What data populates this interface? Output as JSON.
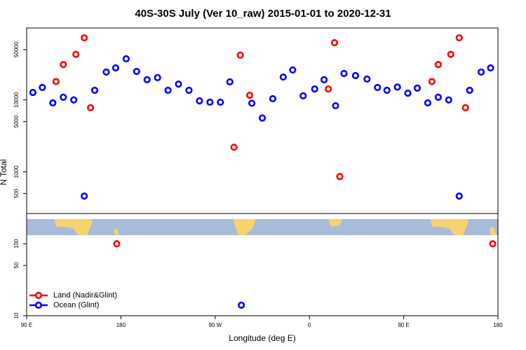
{
  "chart_data": {
    "type": "scatter",
    "title": "40S-30S July (Ver 10_raw)   2015-01-01 to 2020-12-31",
    "x_label": "Longitude (deg E)",
    "y_label": "N Total",
    "log_y": true,
    "legend": "bottom-left",
    "xlim": [
      90,
      540
    ],
    "xticks": [
      {
        "value": 90,
        "label": "90 E"
      },
      {
        "value": 180,
        "label": "180"
      },
      {
        "value": 270,
        "label": "90 W"
      },
      {
        "value": 360,
        "label": "0"
      },
      {
        "value": 450,
        "label": "90 E"
      },
      {
        "value": 540,
        "label": "180"
      }
    ],
    "ylim": [
      10,
      100000
    ],
    "yticks": [
      10,
      50,
      100,
      500,
      1000,
      5000,
      10000,
      50000
    ],
    "series": [
      {
        "name": "Land (Nadir&Glint)",
        "color": "#ff0000",
        "x": [
          118,
          125,
          137,
          145,
          151,
          176,
          288,
          294,
          303,
          378,
          384,
          389,
          477,
          483,
          495,
          503,
          509,
          535
        ],
        "values": [
          18000,
          31000,
          43000,
          73000,
          7800,
          100,
          2200,
          42000,
          11600,
          14200,
          62500,
          860,
          18000,
          31000,
          43000,
          73000,
          7800,
          100
        ]
      },
      {
        "name": "Ocean (Glint)",
        "color": "#0000ff",
        "x": [
          96,
          105,
          115,
          125,
          135,
          145,
          155,
          166,
          175,
          185,
          195,
          205,
          215,
          225,
          235,
          245,
          255,
          265,
          275,
          284,
          295,
          305,
          315,
          325,
          335,
          344,
          354,
          365,
          374,
          385,
          393,
          404,
          415,
          425,
          434,
          444,
          454,
          463,
          473,
          483,
          493,
          503,
          513,
          524,
          533
        ],
        "values": [
          12700,
          14900,
          9100,
          10900,
          10000,
          460,
          13600,
          24400,
          27900,
          37300,
          24900,
          19100,
          20400,
          13600,
          16600,
          13600,
          9700,
          9300,
          9300,
          17800,
          14,
          9000,
          5600,
          10400,
          20800,
          26100,
          11400,
          14200,
          19100,
          8300,
          23300,
          21800,
          19500,
          14900,
          13600,
          15100,
          12400,
          14600,
          9100,
          10900,
          10000,
          460,
          13600,
          24400,
          27900
        ]
      }
    ]
  }
}
